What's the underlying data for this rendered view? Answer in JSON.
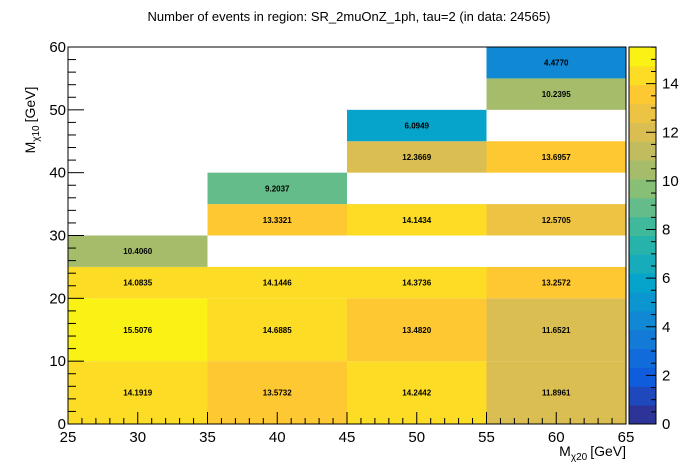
{
  "chart_data": {
    "type": "heatmap",
    "title": "Number of events in region: SR_2muOnZ_1ph, tau=2 (in data: 24565)",
    "xlabel": {
      "main": "M",
      "sub": "χ20",
      "unit": "[GeV]"
    },
    "ylabel": {
      "main": "M",
      "sub": "χ10",
      "unit": "[GeV]"
    },
    "xlim": [
      25,
      65
    ],
    "ylim": [
      0,
      60
    ],
    "x_ticks": [
      "25",
      "30",
      "35",
      "40",
      "45",
      "50",
      "55",
      "60",
      "65"
    ],
    "y_ticks": [
      "0",
      "10",
      "20",
      "30",
      "40",
      "50",
      "60"
    ],
    "z_ticks": [
      "0",
      "2",
      "4",
      "6",
      "8",
      "10",
      "12",
      "14"
    ],
    "zlim": [
      0,
      15.5076
    ],
    "palette": [
      "#352a87",
      "#0f5cdd",
      "#1481d6",
      "#06a4ca",
      "#2eb7a4",
      "#87bf77",
      "#d1bb59",
      "#fec832",
      "#f9fb0e"
    ],
    "cells": [
      {
        "x": [
          25,
          35
        ],
        "y": [
          0,
          10
        ],
        "value": 14.1919,
        "label": "14.1919"
      },
      {
        "x": [
          35,
          45
        ],
        "y": [
          0,
          10
        ],
        "value": 13.5732,
        "label": "13.5732"
      },
      {
        "x": [
          45,
          55
        ],
        "y": [
          0,
          10
        ],
        "value": 14.2442,
        "label": "14.2442"
      },
      {
        "x": [
          55,
          65
        ],
        "y": [
          0,
          10
        ],
        "value": 11.8961,
        "label": "11.8961"
      },
      {
        "x": [
          25,
          35
        ],
        "y": [
          10,
          20
        ],
        "value": 15.5076,
        "label": "15.5076"
      },
      {
        "x": [
          35,
          45
        ],
        "y": [
          10,
          20
        ],
        "value": 14.6885,
        "label": "14.6885"
      },
      {
        "x": [
          45,
          55
        ],
        "y": [
          10,
          20
        ],
        "value": 13.482,
        "label": "13.4820"
      },
      {
        "x": [
          55,
          65
        ],
        "y": [
          10,
          20
        ],
        "value": 11.6521,
        "label": "11.6521"
      },
      {
        "x": [
          25,
          35
        ],
        "y": [
          20,
          25
        ],
        "value": 14.0835,
        "label": "14.0835"
      },
      {
        "x": [
          35,
          45
        ],
        "y": [
          20,
          25
        ],
        "value": 14.1446,
        "label": "14.1446"
      },
      {
        "x": [
          45,
          55
        ],
        "y": [
          20,
          25
        ],
        "value": 14.3736,
        "label": "14.3736"
      },
      {
        "x": [
          55,
          65
        ],
        "y": [
          20,
          25
        ],
        "value": 13.2572,
        "label": "13.2572"
      },
      {
        "x": [
          25,
          35
        ],
        "y": [
          25,
          30
        ],
        "value": 10.406,
        "label": "10.4060"
      },
      {
        "x": [
          35,
          45
        ],
        "y": [
          30,
          35
        ],
        "value": 13.3321,
        "label": "13.3321"
      },
      {
        "x": [
          45,
          55
        ],
        "y": [
          30,
          35
        ],
        "value": 14.1434,
        "label": "14.1434"
      },
      {
        "x": [
          55,
          65
        ],
        "y": [
          30,
          35
        ],
        "value": 12.5705,
        "label": "12.5705"
      },
      {
        "x": [
          35,
          45
        ],
        "y": [
          35,
          40
        ],
        "value": 9.2037,
        "label": "9.2037"
      },
      {
        "x": [
          45,
          55
        ],
        "y": [
          40,
          45
        ],
        "value": 12.3669,
        "label": "12.3669"
      },
      {
        "x": [
          55,
          65
        ],
        "y": [
          40,
          45
        ],
        "value": 13.6957,
        "label": "13.6957"
      },
      {
        "x": [
          45,
          55
        ],
        "y": [
          45,
          50
        ],
        "value": 6.0949,
        "label": "6.0949"
      },
      {
        "x": [
          55,
          65
        ],
        "y": [
          50,
          55
        ],
        "value": 10.2395,
        "label": "10.2395"
      },
      {
        "x": [
          55,
          65
        ],
        "y": [
          55,
          60
        ],
        "value": 4.477,
        "label": "4.4770"
      }
    ]
  }
}
